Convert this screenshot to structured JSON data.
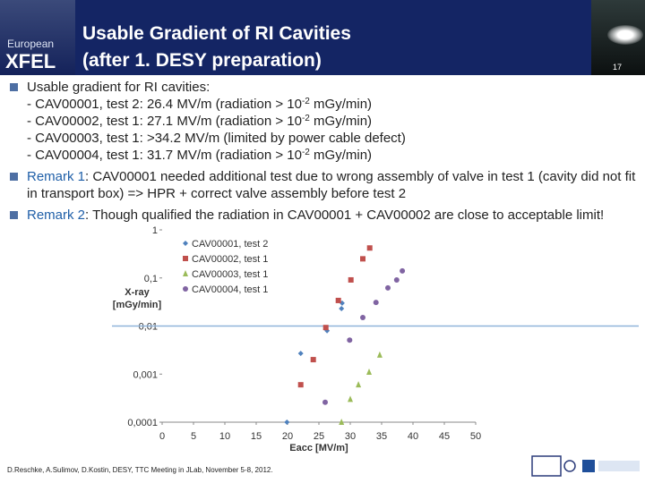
{
  "header": {
    "logo_top": "European",
    "logo_bottom": "XFEL",
    "title_lines": [
      "Usable Gradient of RI Cavities",
      "(after 1. DESY preparation)"
    ],
    "page_number": "17"
  },
  "bullets": [
    {
      "text": "Usable gradient for RI cavities:",
      "lines": [
        {
          "before": "- CAV00001, test 2: 26.4 MV/m (radiation > 10",
          "sup": "-2",
          "after": " mGy/min)"
        },
        {
          "before": "- CAV00002, test 1: 27.1 MV/m (radiation > 10",
          "sup": "-2",
          "after": " mGy/min)"
        },
        {
          "before": "- CAV00003, test 1: >34.2 MV/m (limited by power cable defect)"
        },
        {
          "before": "- CAV00004, test 1: 31.7 MV/m (radiation > 10",
          "sup": "-2",
          "after": " mGy/min)"
        }
      ]
    },
    {
      "label": "Remark 1",
      "text": ": CAV00001 needed additional test due to wrong assembly of valve in test 1 (cavity did not fit in transport box) => HPR + correct valve assembly before test 2"
    },
    {
      "label": "Remark 2",
      "text": ": Though qualified the radiation in CAV00001 + CAV00002 are close to acceptable limit!"
    }
  ],
  "chart_data": {
    "type": "scatter",
    "log_y": true,
    "xlabel": "Eacc [MV/m]",
    "ylabel": [
      "X-ray",
      "[mGy/min]"
    ],
    "xlim": [
      0,
      50
    ],
    "xticks": [
      0,
      5,
      10,
      15,
      20,
      25,
      30,
      35,
      40,
      45,
      50
    ],
    "ylim": [
      0.0001,
      1
    ],
    "yticks": [
      {
        "value": 0.0001,
        "label": "0,0001"
      },
      {
        "value": 0.001,
        "label": "0,001"
      },
      {
        "value": 0.01,
        "label": "0,01"
      },
      {
        "value": 0.1,
        "label": "0,1"
      },
      1
    ],
    "hline": 0.01,
    "legend": "top-left",
    "series": [
      {
        "name": "CAV00001, test 2",
        "color": "#4f81bd",
        "marker": "diamond",
        "x": [
          19.9,
          22.1,
          26.3,
          28.6,
          28.7
        ],
        "values": [
          0.0001,
          0.0027,
          0.008,
          0.023,
          0.03
        ]
      },
      {
        "name": "CAV00002, test 1",
        "color": "#c0504d",
        "marker": "square",
        "x": [
          22.1,
          24.1,
          26.1,
          28.1,
          30.1,
          32,
          33.1
        ],
        "values": [
          0.0006,
          0.002,
          0.0093,
          0.034,
          0.091,
          0.25,
          0.42
        ]
      },
      {
        "name": "CAV00003, test 1",
        "color": "#9bbb59",
        "marker": "triangle",
        "x": [
          28.6,
          30,
          31.3,
          33,
          34.7
        ],
        "values": [
          0.0001,
          0.0003,
          0.0006,
          0.0011,
          0.0025
        ]
      },
      {
        "name": "CAV00004, test 1",
        "color": "#8064a2",
        "marker": "circle",
        "x": [
          26,
          29.9,
          32,
          34.1,
          36,
          37.4,
          38.3
        ],
        "values": [
          0.00026,
          0.0051,
          0.015,
          0.031,
          0.062,
          0.091,
          0.14
        ]
      }
    ]
  },
  "footer": {
    "credit": "D.Reschke, A.Sulimov, D.Kostin, DESY, TTC Meeting in JLab, November 5-8, 2012."
  }
}
